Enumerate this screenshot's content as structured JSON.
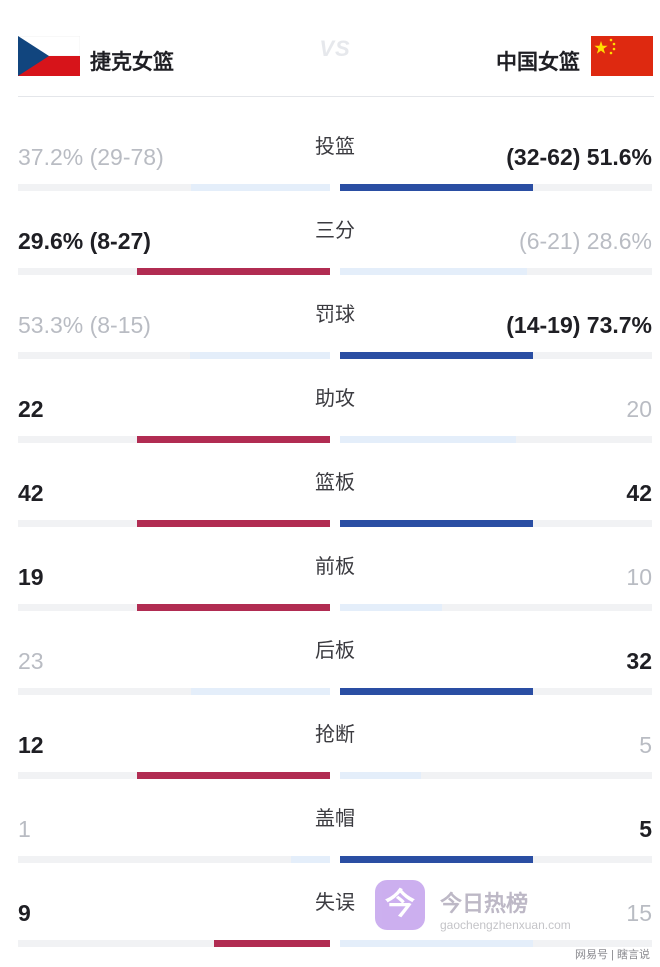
{
  "header": {
    "home_team": "捷克女篮",
    "away_team": "中国女篮",
    "vs_text": "VS"
  },
  "colors": {
    "home_leader": "#b12c52",
    "away_leader": "#2a4ea3",
    "trailing": "#e4eefa",
    "track": "#f1f2f4"
  },
  "stats": [
    {
      "label": "投篮",
      "home": "37.2% (29-78)",
      "away": "(32-62) 51.6%",
      "home_value": 37.2,
      "away_value": 51.6,
      "leader": "away"
    },
    {
      "label": "三分",
      "home": "29.6% (8-27)",
      "away": "(6-21) 28.6%",
      "home_value": 29.6,
      "away_value": 28.6,
      "leader": "home"
    },
    {
      "label": "罚球",
      "home": "53.3% (8-15)",
      "away": "(14-19) 73.7%",
      "home_value": 53.3,
      "away_value": 73.7,
      "leader": "away"
    },
    {
      "label": "助攻",
      "home": "22",
      "away": "20",
      "home_value": 22,
      "away_value": 20,
      "leader": "home"
    },
    {
      "label": "篮板",
      "home": "42",
      "away": "42",
      "home_value": 42,
      "away_value": 42,
      "leader": "both"
    },
    {
      "label": "前板",
      "home": "19",
      "away": "10",
      "home_value": 19,
      "away_value": 10,
      "leader": "home"
    },
    {
      "label": "后板",
      "home": "23",
      "away": "32",
      "home_value": 23,
      "away_value": 32,
      "leader": "away"
    },
    {
      "label": "抢断",
      "home": "12",
      "away": "5",
      "home_value": 12,
      "away_value": 5,
      "leader": "home"
    },
    {
      "label": "盖帽",
      "home": "1",
      "away": "5",
      "home_value": 1,
      "away_value": 5,
      "leader": "away"
    },
    {
      "label": "失误",
      "home": "9",
      "away": "15",
      "home_value": 9,
      "away_value": 15,
      "leader": "home"
    }
  ],
  "watermark": {
    "logo_char": "今",
    "title": "今日热榜",
    "url": "gaochengzhenxuan.com"
  },
  "footer": {
    "text": "网易号 | 瞎言说"
  }
}
